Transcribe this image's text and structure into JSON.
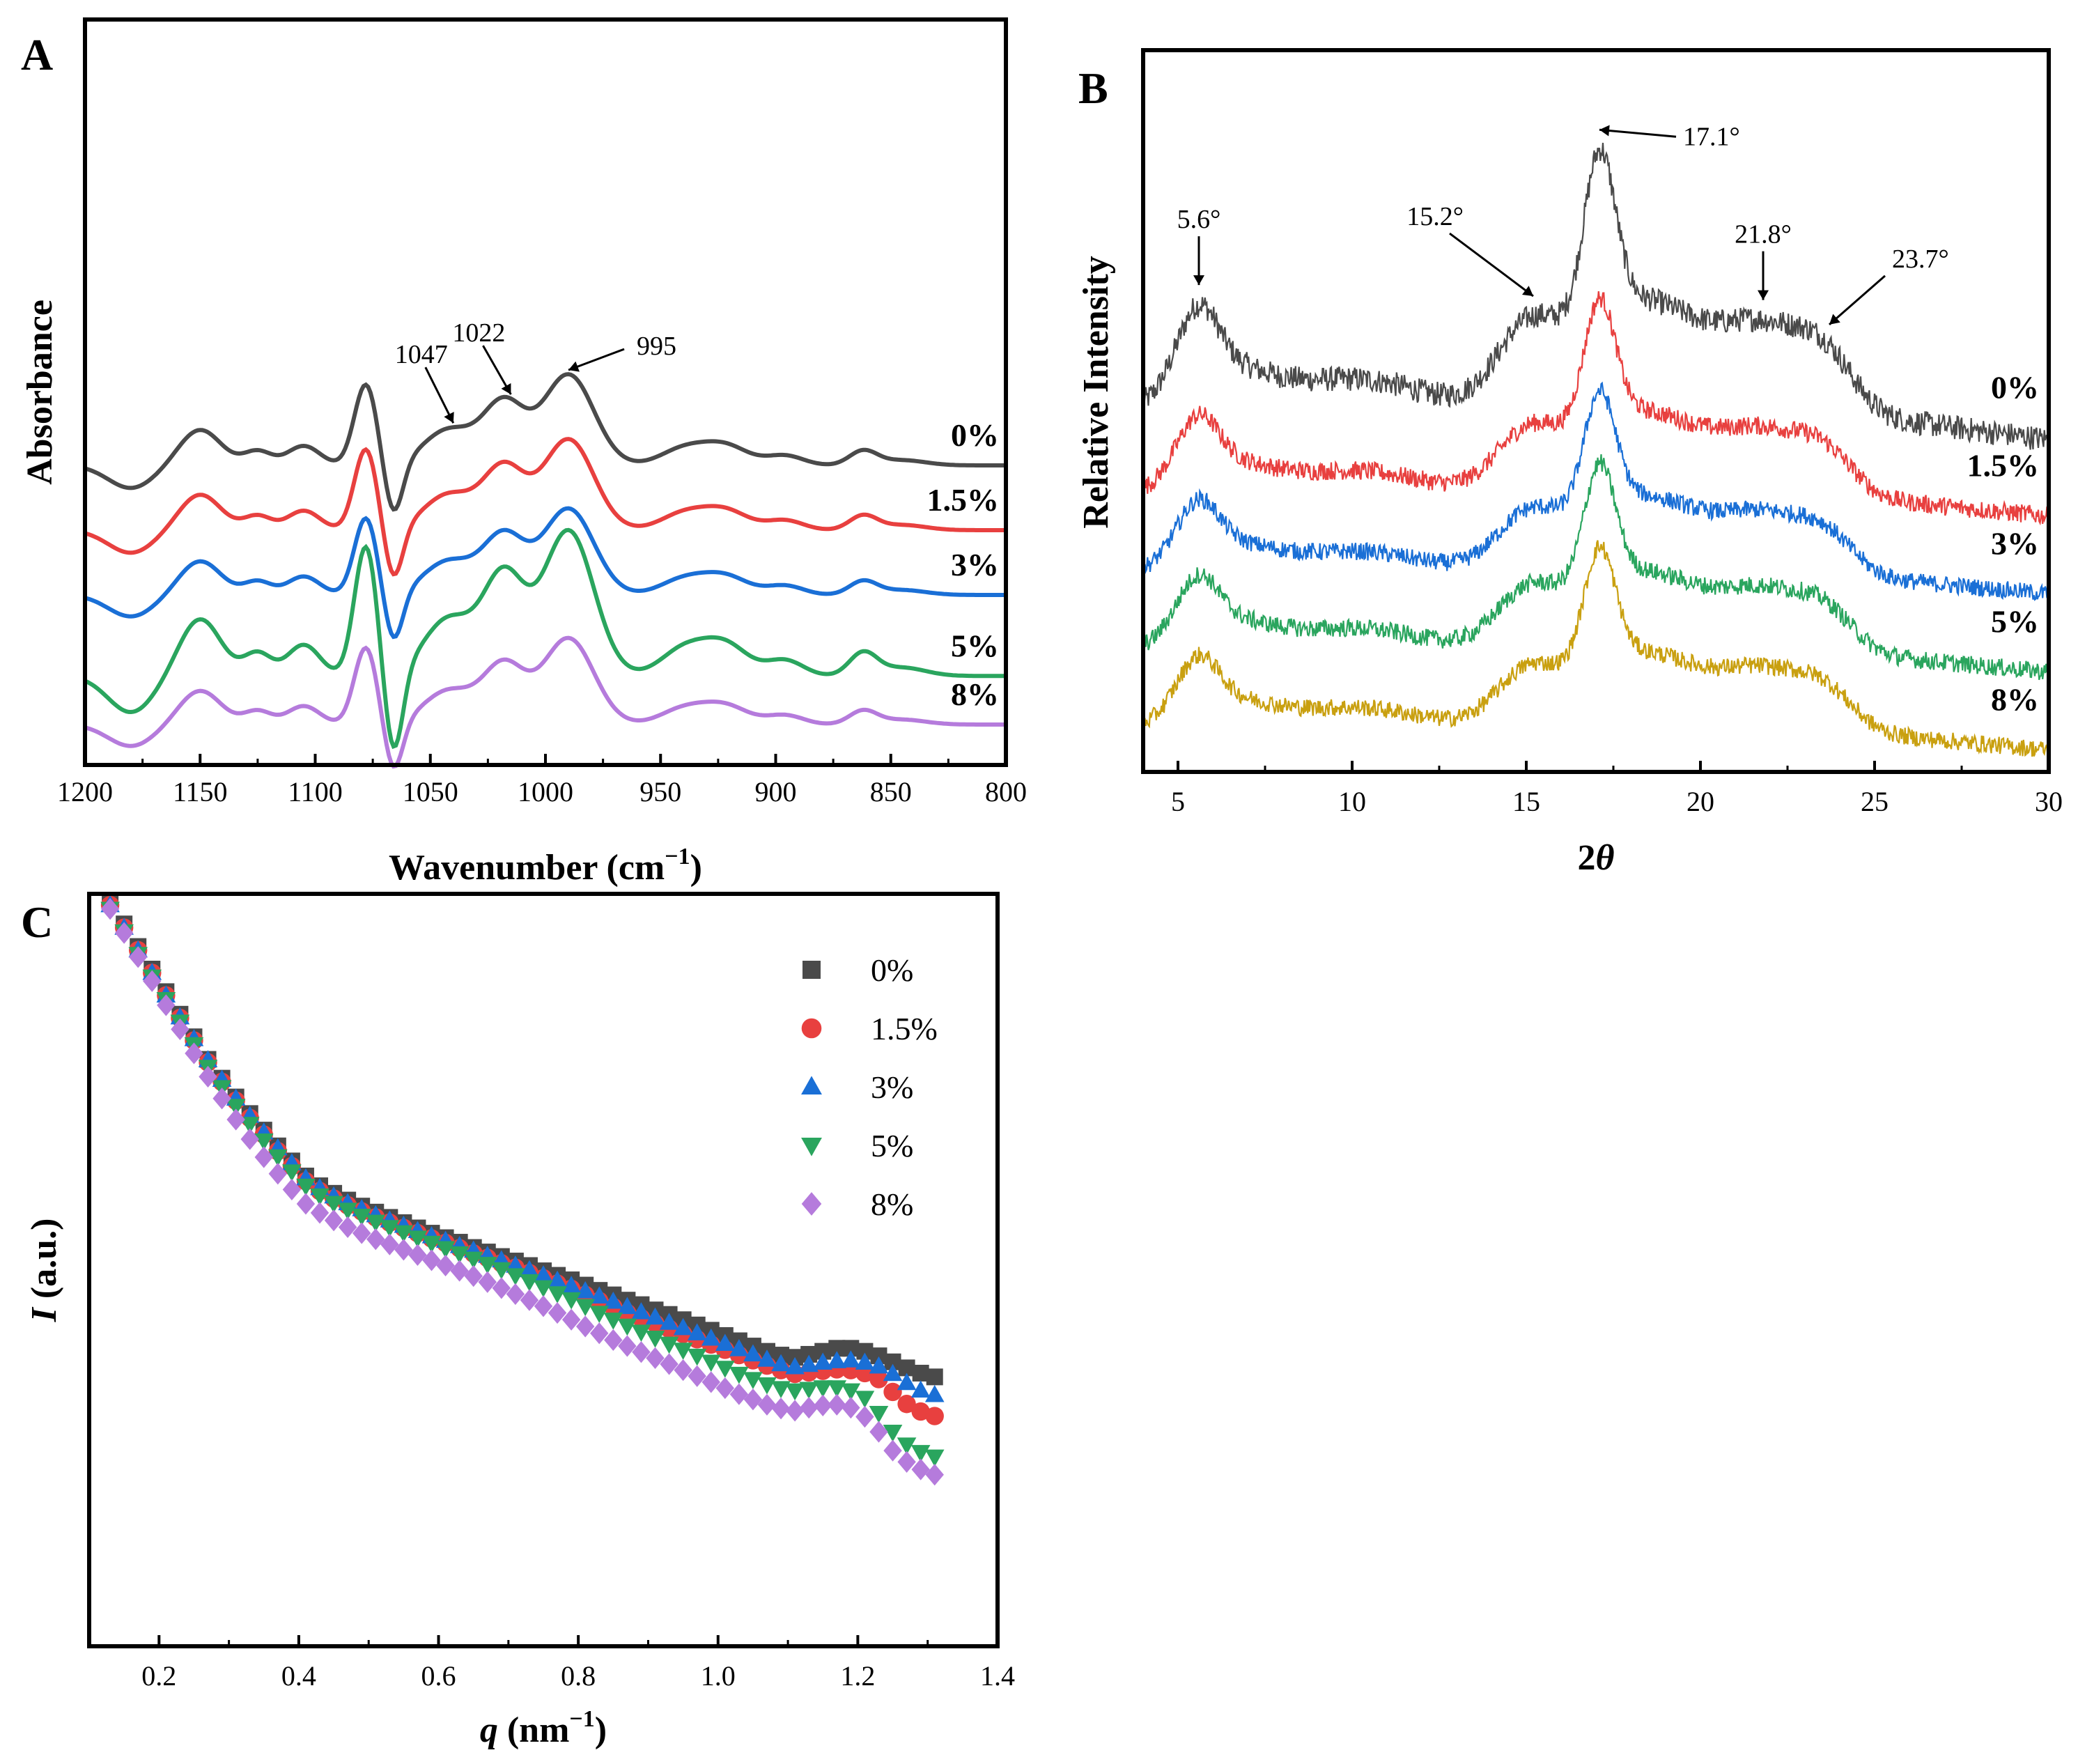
{
  "chart_data": [
    {
      "panel": "A",
      "type": "line",
      "title": "",
      "xlabel": "Wavenumber (cm",
      "xlabel_sup": "−1",
      "xlabel_end": ")",
      "ylabel": "Absorbance",
      "xlim": [
        1200,
        800
      ],
      "xticks": [
        1200,
        1150,
        1100,
        1050,
        1000,
        950,
        900,
        850,
        800
      ],
      "xtick_labels": [
        "1200",
        "1150",
        "1100",
        "1050",
        "1000",
        "950",
        "900",
        "850",
        "800"
      ],
      "grid": false,
      "series": [
        {
          "name": "0%",
          "color": "#4a4a4a",
          "offset": 4.0,
          "amplitude": 1.0
        },
        {
          "name": "1.5%",
          "color": "#e8403f",
          "offset": 3.0,
          "amplitude": 1.0
        },
        {
          "name": "3%",
          "color": "#1a6fd6",
          "offset": 2.0,
          "amplitude": 0.95
        },
        {
          "name": "5%",
          "color": "#2aa55e",
          "offset": 0.75,
          "amplitude": 1.6
        },
        {
          "name": "8%",
          "color": "#b57bdc",
          "offset": 0.0,
          "amplitude": 0.95
        }
      ],
      "annotations": [
        {
          "text": "1047",
          "x": 1040
        },
        {
          "text": "1022",
          "x": 1015
        },
        {
          "text": "995",
          "x": 990
        }
      ]
    },
    {
      "panel": "B",
      "type": "line",
      "title": "",
      "xlabel": "2",
      "xlabel_italic": "θ",
      "ylabel": "Relative Intensity",
      "xlim": [
        4,
        30
      ],
      "xticks": [
        5,
        10,
        15,
        20,
        25,
        30
      ],
      "xtick_labels": [
        "5",
        "10",
        "15",
        "20",
        "25",
        "30"
      ],
      "grid": false,
      "series": [
        {
          "name": "0%",
          "color": "#4a4a4a",
          "offset": 4.0,
          "amplitude": 1.0
        },
        {
          "name": "1.5%",
          "color": "#e8403f",
          "offset": 3.0,
          "amplitude": 0.75
        },
        {
          "name": "3%",
          "color": "#1a6fd6",
          "offset": 2.0,
          "amplitude": 0.7
        },
        {
          "name": "5%",
          "color": "#2aa55e",
          "offset": 1.0,
          "amplitude": 0.72
        },
        {
          "name": "8%",
          "color": "#c9a010",
          "offset": 0.0,
          "amplitude": 0.7
        }
      ],
      "annotations": [
        {
          "text": "5.6°",
          "x": 5.6
        },
        {
          "text": "15.2°",
          "x": 15.2
        },
        {
          "text": "17.1°",
          "x": 17.1
        },
        {
          "text": "21.8°",
          "x": 21.8
        },
        {
          "text": "23.7°",
          "x": 23.7
        }
      ]
    },
    {
      "panel": "C",
      "type": "scatter",
      "title": "",
      "xlabel_italic": "q",
      "xlabel": " (nm",
      "xlabel_sup": "−1",
      "xlabel_end": ")",
      "ylabel_italic": "I",
      "ylabel": " (a.u.)",
      "xlim": [
        0.1,
        1.4
      ],
      "ylim": [
        0,
        10
      ],
      "xticks": [
        0.2,
        0.4,
        0.6,
        0.8,
        1.0,
        1.2,
        1.4
      ],
      "xtick_labels": [
        "0.2",
        "0.4",
        "0.6",
        "0.8",
        "1.0",
        "1.2",
        "1.4"
      ],
      "grid": false,
      "legend": "top-right",
      "x": [
        0.13,
        0.15,
        0.17,
        0.19,
        0.21,
        0.23,
        0.25,
        0.27,
        0.29,
        0.31,
        0.33,
        0.35,
        0.37,
        0.39,
        0.41,
        0.43,
        0.45,
        0.47,
        0.49,
        0.51,
        0.53,
        0.55,
        0.57,
        0.59,
        0.61,
        0.63,
        0.65,
        0.67,
        0.69,
        0.71,
        0.73,
        0.75,
        0.77,
        0.79,
        0.81,
        0.83,
        0.85,
        0.87,
        0.89,
        0.91,
        0.93,
        0.95,
        0.97,
        0.99,
        1.01,
        1.03,
        1.05,
        1.07,
        1.09,
        1.11,
        1.13,
        1.15,
        1.17,
        1.19,
        1.21,
        1.23,
        1.25,
        1.27,
        1.29,
        1.31
      ],
      "series": [
        {
          "name": "0%",
          "color": "#4a4a4a",
          "marker": "square",
          "values": [
            9.9,
            9.6,
            9.3,
            9.0,
            8.7,
            8.4,
            8.1,
            7.8,
            7.55,
            7.3,
            7.08,
            6.86,
            6.65,
            6.45,
            6.25,
            6.12,
            6.02,
            5.93,
            5.85,
            5.77,
            5.7,
            5.63,
            5.56,
            5.49,
            5.43,
            5.37,
            5.3,
            5.24,
            5.18,
            5.12,
            5.06,
            4.99,
            4.93,
            4.87,
            4.8,
            4.73,
            4.67,
            4.6,
            4.54,
            4.47,
            4.41,
            4.34,
            4.27,
            4.2,
            4.13,
            4.06,
            3.99,
            3.92,
            3.87,
            3.84,
            3.88,
            3.92,
            3.96,
            3.96,
            3.92,
            3.86,
            3.78,
            3.7,
            3.63,
            3.58
          ]
        },
        {
          "name": "1.5%",
          "color": "#e8403f",
          "marker": "circle",
          "values": [
            9.85,
            9.55,
            9.25,
            8.95,
            8.65,
            8.35,
            8.05,
            7.76,
            7.5,
            7.25,
            7.02,
            6.8,
            6.58,
            6.38,
            6.18,
            6.05,
            5.95,
            5.86,
            5.78,
            5.7,
            5.63,
            5.56,
            5.49,
            5.42,
            5.36,
            5.29,
            5.22,
            5.16,
            5.09,
            5.03,
            4.96,
            4.89,
            4.82,
            4.75,
            4.67,
            4.59,
            4.51,
            4.43,
            4.36,
            4.29,
            4.22,
            4.15,
            4.08,
            4.01,
            3.94,
            3.87,
            3.8,
            3.73,
            3.67,
            3.62,
            3.64,
            3.66,
            3.68,
            3.67,
            3.63,
            3.55,
            3.38,
            3.22,
            3.12,
            3.06
          ]
        },
        {
          "name": "3%",
          "color": "#1a6fd6",
          "marker": "triangle-up",
          "values": [
            9.85,
            9.55,
            9.25,
            8.95,
            8.65,
            8.36,
            8.07,
            7.79,
            7.53,
            7.28,
            7.05,
            6.83,
            6.62,
            6.42,
            6.22,
            6.09,
            5.98,
            5.89,
            5.81,
            5.73,
            5.66,
            5.59,
            5.52,
            5.45,
            5.39,
            5.32,
            5.26,
            5.19,
            5.13,
            5.06,
            5.0,
            4.93,
            4.86,
            4.79,
            4.72,
            4.65,
            4.58,
            4.51,
            4.44,
            4.37,
            4.3,
            4.23,
            4.16,
            4.09,
            4.02,
            3.95,
            3.88,
            3.81,
            3.75,
            3.71,
            3.74,
            3.77,
            3.79,
            3.8,
            3.77,
            3.72,
            3.62,
            3.5,
            3.4,
            3.34
          ]
        },
        {
          "name": "5%",
          "color": "#2aa55e",
          "marker": "triangle-down",
          "values": [
            9.8,
            9.5,
            9.2,
            8.9,
            8.6,
            8.3,
            8.0,
            7.7,
            7.43,
            7.18,
            6.94,
            6.72,
            6.51,
            6.31,
            6.12,
            5.99,
            5.89,
            5.8,
            5.72,
            5.64,
            5.57,
            5.5,
            5.43,
            5.36,
            5.29,
            5.22,
            5.15,
            5.08,
            5.01,
            4.93,
            4.85,
            4.77,
            4.69,
            4.61,
            4.52,
            4.43,
            4.34,
            4.26,
            4.18,
            4.1,
            4.02,
            3.94,
            3.86,
            3.78,
            3.7,
            3.62,
            3.55,
            3.48,
            3.43,
            3.4,
            3.42,
            3.44,
            3.44,
            3.4,
            3.3,
            3.1,
            2.85,
            2.68,
            2.58,
            2.52
          ]
        },
        {
          "name": "8%",
          "color": "#b57bdc",
          "marker": "diamond",
          "values": [
            9.8,
            9.48,
            9.16,
            8.84,
            8.52,
            8.2,
            7.88,
            7.57,
            7.28,
            7.0,
            6.74,
            6.5,
            6.28,
            6.07,
            5.88,
            5.76,
            5.66,
            5.57,
            5.49,
            5.41,
            5.34,
            5.27,
            5.2,
            5.13,
            5.06,
            4.99,
            4.92,
            4.84,
            4.76,
            4.68,
            4.6,
            4.52,
            4.43,
            4.34,
            4.25,
            4.16,
            4.07,
            3.99,
            3.91,
            3.83,
            3.75,
            3.67,
            3.59,
            3.51,
            3.43,
            3.35,
            3.28,
            3.21,
            3.16,
            3.13,
            3.17,
            3.2,
            3.21,
            3.17,
            3.05,
            2.85,
            2.6,
            2.45,
            2.35,
            2.28
          ]
        }
      ]
    }
  ]
}
